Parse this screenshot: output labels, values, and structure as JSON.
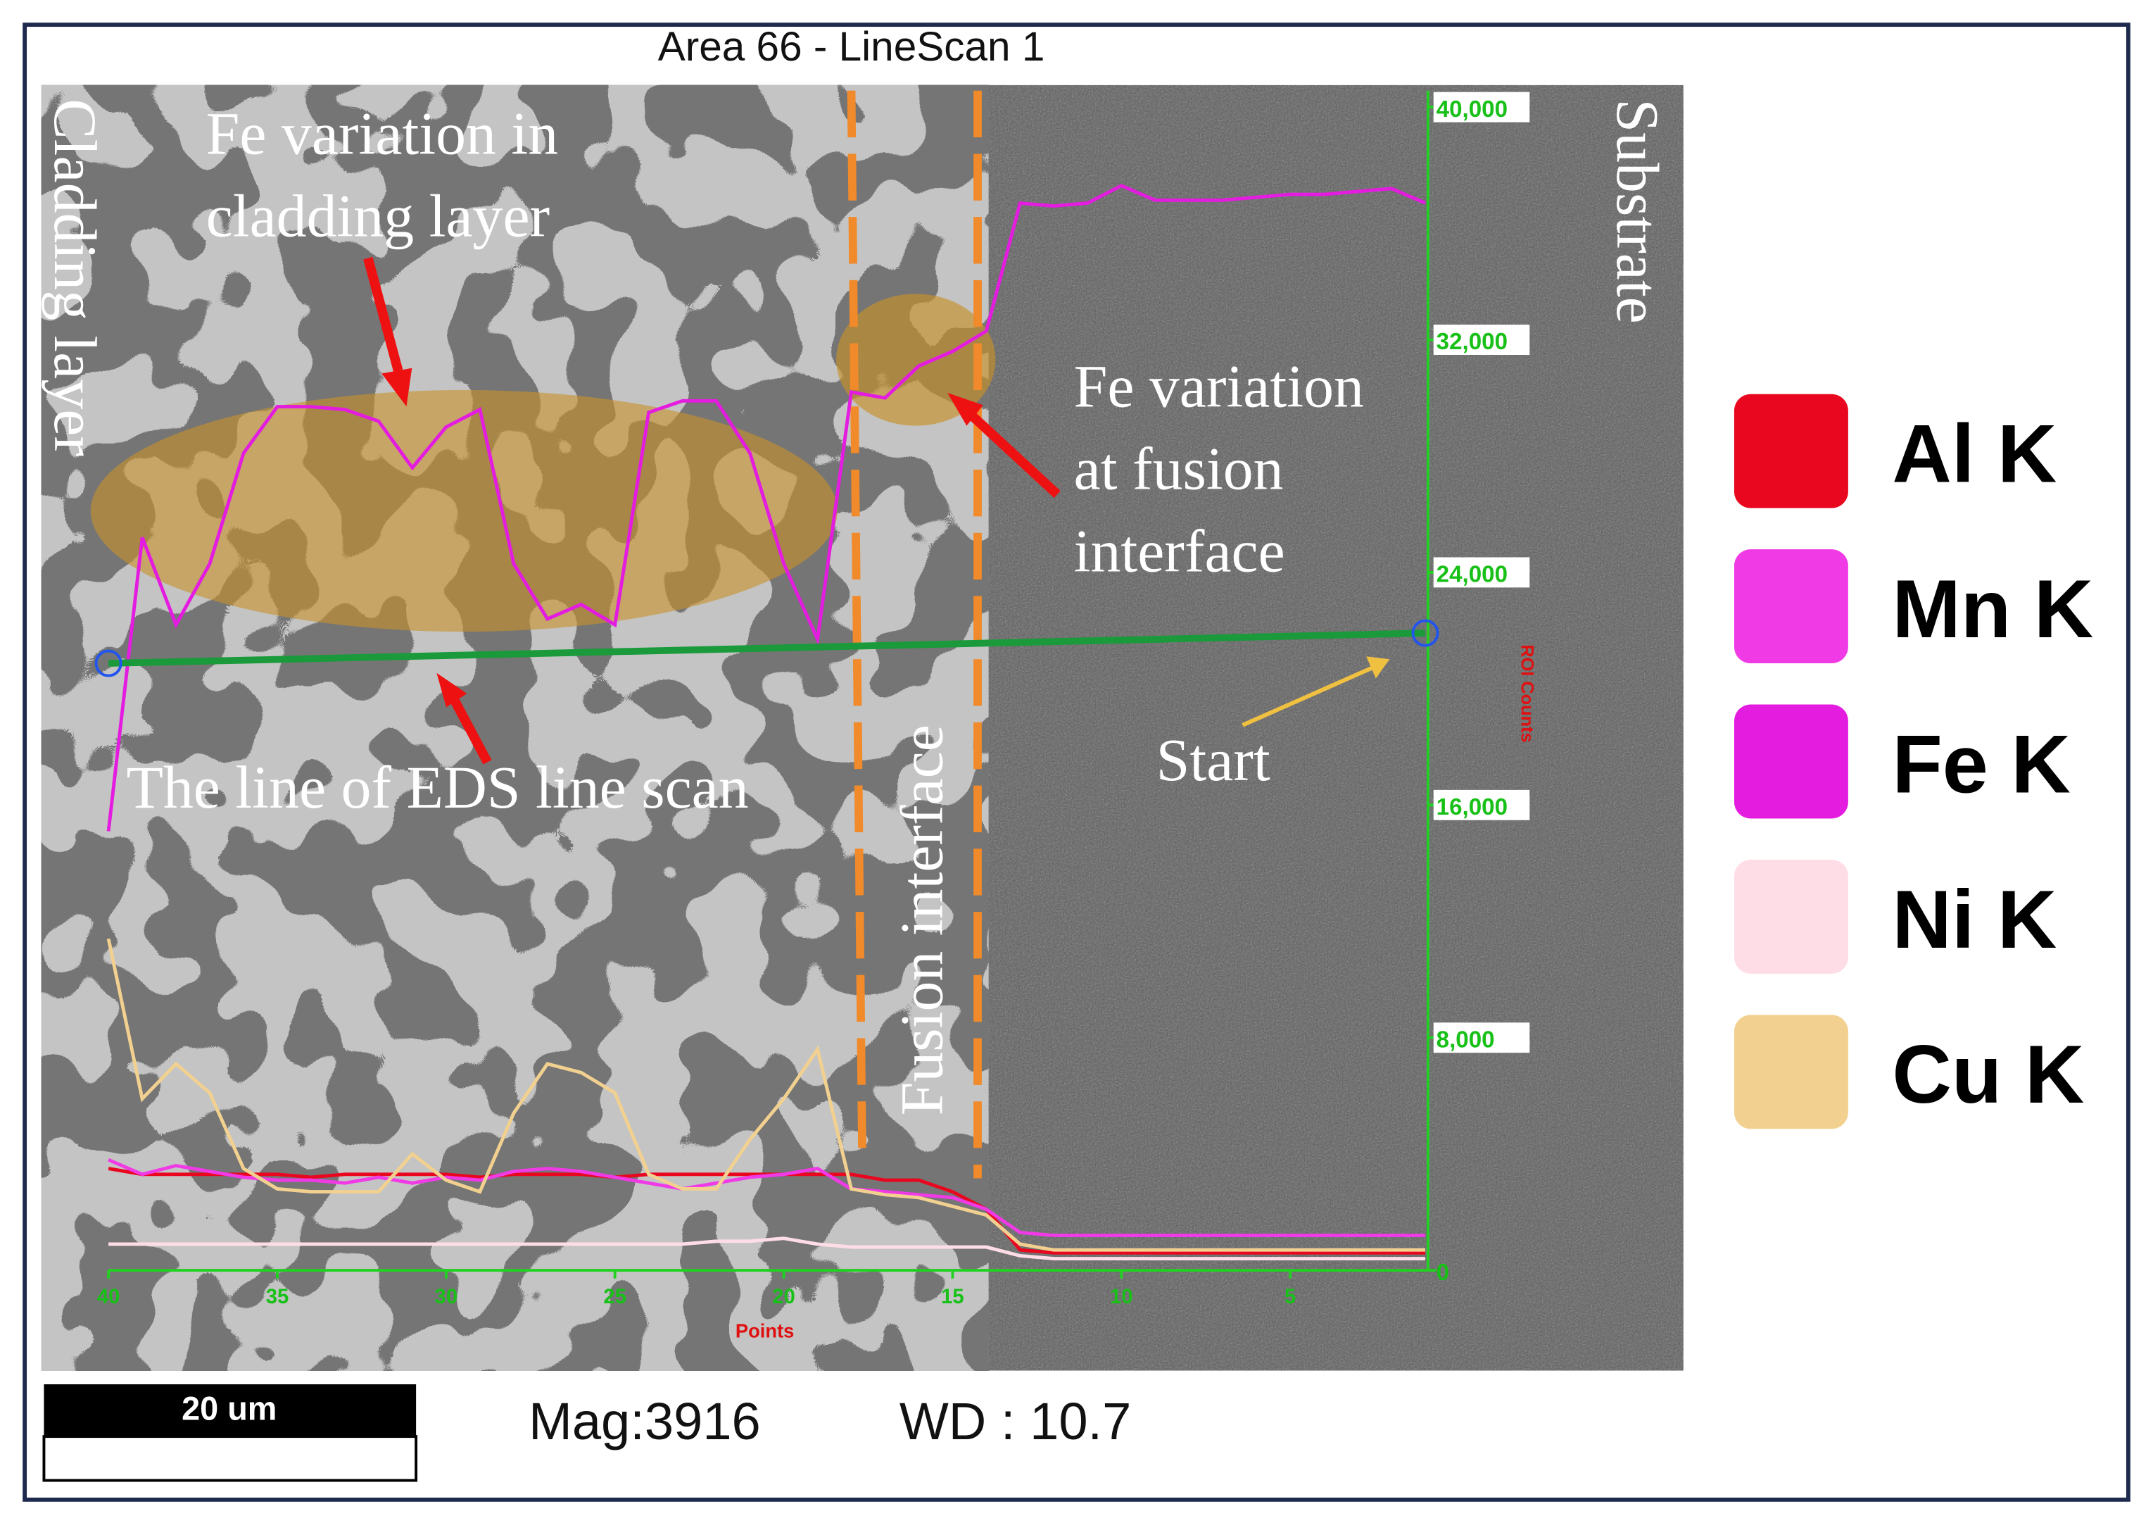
{
  "chart_data": {
    "type": "line",
    "title": "Area 66 - LineScan 1",
    "x_label": "Points",
    "y_label": "ROI Counts",
    "x": [
      40,
      39,
      38,
      37,
      36,
      35,
      34,
      33,
      32,
      31,
      30,
      29,
      28,
      27,
      26,
      25,
      24,
      23,
      22,
      21,
      20,
      19,
      18,
      17,
      16,
      15,
      14,
      13,
      12,
      11,
      10,
      9,
      8,
      7,
      6,
      5,
      4,
      3,
      2,
      1
    ],
    "xlim": [
      40,
      1
    ],
    "xticks": [
      40,
      35,
      30,
      25,
      20,
      15,
      10,
      5
    ],
    "ylim": [
      0,
      40000
    ],
    "yticks": [
      0,
      {
        "value": 8000,
        "label": "8,000"
      },
      {
        "value": 16000,
        "label": "16,000"
      },
      {
        "value": 24000,
        "label": "24,000"
      },
      {
        "value": 32000,
        "label": "32,000"
      },
      {
        "value": 40000,
        "label": "40,000"
      }
    ],
    "series": [
      {
        "name": "Al K",
        "color": "#e8071f",
        "values": [
          3500,
          3300,
          3300,
          3300,
          3300,
          3300,
          3200,
          3300,
          3300,
          3300,
          3300,
          3200,
          3300,
          3300,
          3300,
          3200,
          3300,
          3300,
          3300,
          3300,
          3300,
          3300,
          3300,
          3100,
          3100,
          2700,
          2100,
          700,
          600,
          600,
          600,
          600,
          600,
          600,
          600,
          600,
          600,
          600,
          600,
          600
        ]
      },
      {
        "name": "Mn K",
        "color": "#f03ae6",
        "values": [
          3800,
          3300,
          3600,
          3400,
          3200,
          3100,
          3100,
          3000,
          3200,
          3000,
          3200,
          3100,
          3400,
          3500,
          3400,
          3200,
          3000,
          2800,
          3000,
          3200,
          3300,
          3500,
          2800,
          2700,
          2600,
          2500,
          2100,
          1300,
          1200,
          1200,
          1200,
          1200,
          1200,
          1200,
          1200,
          1200,
          1200,
          1200,
          1200,
          1200
        ]
      },
      {
        "name": "Fe K",
        "color": "#e41ce0",
        "values": [
          15100,
          25200,
          22200,
          24300,
          28100,
          29700,
          29700,
          29600,
          29200,
          27600,
          29000,
          29600,
          24300,
          22400,
          22900,
          22200,
          29500,
          29900,
          29900,
          28100,
          24300,
          21700,
          30200,
          30000,
          31100,
          31600,
          32300,
          36700,
          36600,
          36700,
          37300,
          36800,
          36800,
          36800,
          36900,
          37000,
          37000,
          37100,
          37200,
          36700
        ]
      },
      {
        "name": "Ni K",
        "color": "#ffdde6",
        "values": [
          900,
          900,
          900,
          900,
          900,
          900,
          900,
          900,
          900,
          900,
          900,
          900,
          900,
          900,
          900,
          900,
          900,
          900,
          1000,
          1000,
          1100,
          900,
          800,
          800,
          800,
          800,
          800,
          500,
          400,
          400,
          400,
          400,
          400,
          400,
          400,
          400,
          400,
          400,
          400,
          400
        ]
      },
      {
        "name": "Cu K",
        "color": "#f2d190",
        "values": [
          11400,
          5900,
          7100,
          6100,
          3500,
          2800,
          2700,
          2700,
          2700,
          4000,
          3100,
          2700,
          5400,
          7100,
          6800,
          6100,
          3300,
          2800,
          2800,
          4500,
          5900,
          7600,
          2800,
          2600,
          2500,
          2200,
          1900,
          900,
          700,
          700,
          700,
          700,
          700,
          700,
          700,
          700,
          700,
          700,
          700,
          700
        ]
      }
    ],
    "annotations": [
      {
        "lines": [
          "Cladding layer"
        ]
      },
      {
        "lines": [
          "Fe variation in",
          "cladding layer"
        ]
      },
      {
        "lines": [
          "Fe variation",
          "at fusion",
          "interface"
        ]
      },
      {
        "lines": [
          "Fusion interface"
        ]
      },
      {
        "lines": [
          "Substrate"
        ]
      },
      {
        "lines": [
          "The line of EDS line scan"
        ]
      },
      {
        "lines": [
          "Start"
        ]
      }
    ],
    "scale_bar": "20 um",
    "magnification": "Mag:3916",
    "working_distance": "WD : 10.7"
  }
}
